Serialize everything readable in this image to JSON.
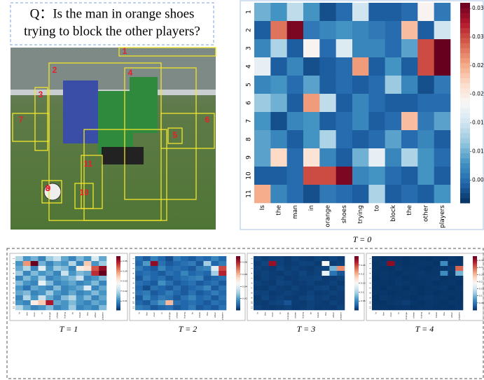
{
  "question": {
    "lines": [
      "Q：Is the man in orange shoes",
      "trying to block the other players?"
    ]
  },
  "image": {
    "box_labels": [
      "1",
      "2",
      "3",
      "4",
      "5",
      "6",
      "7",
      "8",
      "9",
      "10",
      "11"
    ]
  },
  "chart_data": [
    {
      "type": "heatmap",
      "caption": "T = 0",
      "cmap": "RdBu_r",
      "categories": [
        "Is",
        "the",
        "man",
        "in",
        "orange",
        "shoes",
        "trying",
        "to",
        "block",
        "the",
        "other",
        "players"
      ],
      "y_categories": [
        "1",
        "2",
        "3",
        "4",
        "5",
        "6",
        "7",
        "8",
        "9",
        "10",
        "11"
      ],
      "clim": [
        0.001,
        0.036
      ],
      "cticks": [
        0.005,
        {
          "value": 0.01,
          "label": "0.010"
        },
        0.015,
        {
          "value": 0.02,
          "label": "0.020"
        },
        0.025,
        {
          "value": 0.03,
          "label": "0.030"
        },
        0.035
      ],
      "values": [
        [
          0.01,
          0.008,
          0.014,
          0.008,
          0.003,
          0.005,
          0.015,
          0.004,
          0.004,
          0.005,
          0.019,
          0.006
        ],
        [
          0.004,
          0.028,
          0.035,
          0.006,
          0.007,
          0.008,
          0.007,
          0.006,
          0.005,
          0.024,
          0.004,
          0.015
        ],
        [
          0.007,
          0.013,
          0.004,
          0.019,
          0.005,
          0.016,
          0.007,
          0.007,
          0.005,
          0.009,
          0.03,
          0.036
        ],
        [
          0.017,
          0.004,
          0.007,
          0.003,
          0.004,
          0.005,
          0.026,
          0.004,
          0.008,
          0.004,
          0.03,
          0.036
        ],
        [
          0.007,
          0.008,
          0.005,
          0.009,
          0.004,
          0.005,
          0.004,
          0.005,
          0.012,
          0.007,
          0.003,
          0.006
        ],
        [
          0.012,
          0.01,
          0.004,
          0.026,
          0.014,
          0.004,
          0.007,
          0.005,
          0.004,
          0.004,
          0.005,
          0.005
        ],
        [
          0.008,
          0.003,
          0.007,
          0.008,
          0.004,
          0.005,
          0.007,
          0.004,
          0.005,
          0.024,
          0.006,
          0.009
        ],
        [
          0.009,
          0.007,
          0.004,
          0.008,
          0.013,
          0.005,
          0.004,
          0.005,
          0.009,
          0.005,
          0.007,
          0.004
        ],
        [
          0.009,
          0.022,
          0.005,
          0.021,
          0.007,
          0.004,
          0.01,
          0.017,
          0.007,
          0.013,
          0.008,
          0.005
        ],
        [
          0.004,
          0.004,
          0.005,
          0.03,
          0.03,
          0.035,
          0.007,
          0.008,
          0.005,
          0.004,
          0.008,
          0.004
        ],
        [
          0.025,
          0.007,
          0.005,
          0.003,
          0.006,
          0.005,
          0.004,
          0.013,
          0.004,
          0.005,
          0.004,
          0.008
        ]
      ]
    },
    {
      "type": "heatmap",
      "caption": "T = 1",
      "cmap": "RdBu_r",
      "categories": [
        "Is",
        "the",
        "man",
        "in",
        "orange",
        "shoes",
        "trying",
        "to",
        "block",
        "the",
        "other",
        "players"
      ],
      "y_categories": [
        "1",
        "2",
        "3",
        "4",
        "5",
        "6",
        "7",
        "8",
        "9",
        "10",
        "11"
      ],
      "clim": [
        0.001,
        0.055
      ],
      "cticks": [
        0.01,
        0.02,
        0.03,
        0.04,
        0.05
      ],
      "values": [
        [
          0.02,
          0.012,
          0.015,
          0.01,
          0.018,
          0.022,
          0.014,
          0.01,
          0.016,
          0.012,
          0.024,
          0.014
        ],
        [
          0.012,
          0.04,
          0.055,
          0.015,
          0.01,
          0.014,
          0.012,
          0.02,
          0.01,
          0.035,
          0.012,
          0.018
        ],
        [
          0.014,
          0.02,
          0.01,
          0.025,
          0.012,
          0.018,
          0.016,
          0.01,
          0.03,
          0.032,
          0.045,
          0.052
        ],
        [
          0.018,
          0.01,
          0.016,
          0.012,
          0.014,
          0.01,
          0.022,
          0.012,
          0.016,
          0.014,
          0.048,
          0.055
        ],
        [
          0.01,
          0.016,
          0.012,
          0.018,
          0.01,
          0.012,
          0.014,
          0.016,
          0.022,
          0.01,
          0.012,
          0.016
        ],
        [
          0.016,
          0.012,
          0.01,
          0.026,
          0.016,
          0.01,
          0.012,
          0.014,
          0.01,
          0.012,
          0.016,
          0.01
        ],
        [
          0.012,
          0.008,
          0.014,
          0.012,
          0.01,
          0.016,
          0.01,
          0.012,
          0.014,
          0.024,
          0.01,
          0.014
        ],
        [
          0.014,
          0.016,
          0.01,
          0.012,
          0.018,
          0.012,
          0.01,
          0.014,
          0.01,
          0.012,
          0.016,
          0.012
        ],
        [
          0.01,
          0.02,
          0.012,
          0.022,
          0.014,
          0.01,
          0.016,
          0.02,
          0.012,
          0.016,
          0.01,
          0.014
        ],
        [
          0.012,
          0.01,
          0.03,
          0.035,
          0.05,
          0.014,
          0.012,
          0.016,
          0.012,
          0.01,
          0.014,
          0.012
        ],
        [
          0.02,
          0.014,
          0.01,
          0.012,
          0.016,
          0.01,
          0.012,
          0.018,
          0.01,
          0.012,
          0.01,
          0.016
        ]
      ]
    },
    {
      "type": "heatmap",
      "caption": "T = 2",
      "cmap": "RdBu_r",
      "categories": [
        "Is",
        "the",
        "man",
        "in",
        "orange",
        "shoes",
        "trying",
        "to",
        "block",
        "the",
        "other",
        "players"
      ],
      "y_categories": [
        "1",
        "2",
        "3",
        "4",
        "5",
        "6",
        "7",
        "8",
        "9",
        "10",
        "11"
      ],
      "clim": [
        0.001,
        0.09
      ],
      "cticks": [
        0.02,
        0.04,
        0.06,
        0.08
      ],
      "values": [
        [
          0.012,
          0.008,
          0.015,
          0.01,
          0.006,
          0.014,
          0.01,
          0.008,
          0.012,
          0.01,
          0.016,
          0.01
        ],
        [
          0.01,
          0.02,
          0.085,
          0.012,
          0.008,
          0.01,
          0.012,
          0.014,
          0.008,
          0.03,
          0.01,
          0.014
        ],
        [
          0.014,
          0.01,
          0.008,
          0.016,
          0.01,
          0.012,
          0.01,
          0.008,
          0.014,
          0.016,
          0.04,
          0.075
        ],
        [
          0.01,
          0.012,
          0.01,
          0.008,
          0.012,
          0.01,
          0.016,
          0.01,
          0.012,
          0.01,
          0.03,
          0.08
        ],
        [
          0.008,
          0.014,
          0.01,
          0.012,
          0.008,
          0.01,
          0.012,
          0.014,
          0.016,
          0.008,
          0.01,
          0.012
        ],
        [
          0.012,
          0.01,
          0.008,
          0.018,
          0.012,
          0.008,
          0.01,
          0.012,
          0.008,
          0.01,
          0.012,
          0.008
        ],
        [
          0.01,
          0.006,
          0.012,
          0.01,
          0.008,
          0.012,
          0.008,
          0.01,
          0.012,
          0.016,
          0.008,
          0.012
        ],
        [
          0.012,
          0.014,
          0.008,
          0.01,
          0.014,
          0.01,
          0.008,
          0.012,
          0.008,
          0.01,
          0.014,
          0.01
        ],
        [
          0.008,
          0.016,
          0.01,
          0.014,
          0.012,
          0.008,
          0.012,
          0.016,
          0.01,
          0.012,
          0.008,
          0.012
        ],
        [
          0.01,
          0.008,
          0.014,
          0.02,
          0.06,
          0.012,
          0.01,
          0.012,
          0.01,
          0.008,
          0.012,
          0.01
        ],
        [
          0.014,
          0.012,
          0.008,
          0.01,
          0.012,
          0.008,
          0.01,
          0.014,
          0.008,
          0.01,
          0.008,
          0.012
        ]
      ]
    },
    {
      "type": "heatmap",
      "caption": "T = 3",
      "cmap": "RdBu_r",
      "categories": [
        "Is",
        "the",
        "man",
        "in",
        "orange",
        "shoes",
        "trying",
        "to",
        "block",
        "the",
        "other",
        "players"
      ],
      "y_categories": [
        "1",
        "2",
        "3",
        "4",
        "5",
        "6",
        "7",
        "8",
        "9",
        "10",
        "11"
      ],
      "clim": [
        0,
        0.3
      ],
      "cticks": [
        0.05,
        0.1,
        0.15,
        0.2,
        0.25
      ],
      "values": [
        [
          0.012,
          0.008,
          0.01,
          0.01,
          0.006,
          0.01,
          0.008,
          0.006,
          0.01,
          0.008,
          0.012,
          0.008
        ],
        [
          0.008,
          0.012,
          0.28,
          0.01,
          0.006,
          0.008,
          0.01,
          0.01,
          0.006,
          0.15,
          0.008,
          0.01
        ],
        [
          0.01,
          0.008,
          0.006,
          0.012,
          0.008,
          0.01,
          0.008,
          0.006,
          0.01,
          0.012,
          0.08,
          0.22
        ],
        [
          0.008,
          0.01,
          0.008,
          0.006,
          0.01,
          0.008,
          0.012,
          0.008,
          0.01,
          0.14,
          0.04,
          0.02
        ],
        [
          0.006,
          0.01,
          0.008,
          0.01,
          0.006,
          0.008,
          0.01,
          0.01,
          0.012,
          0.006,
          0.008,
          0.01
        ],
        [
          0.01,
          0.008,
          0.006,
          0.012,
          0.01,
          0.006,
          0.008,
          0.01,
          0.006,
          0.008,
          0.01,
          0.006
        ],
        [
          0.008,
          0.006,
          0.01,
          0.008,
          0.006,
          0.01,
          0.006,
          0.008,
          0.01,
          0.012,
          0.006,
          0.01
        ],
        [
          0.01,
          0.01,
          0.006,
          0.008,
          0.01,
          0.008,
          0.006,
          0.01,
          0.006,
          0.008,
          0.01,
          0.008
        ],
        [
          0.006,
          0.012,
          0.008,
          0.01,
          0.008,
          0.006,
          0.01,
          0.012,
          0.008,
          0.01,
          0.006,
          0.008
        ],
        [
          0.008,
          0.006,
          0.01,
          0.012,
          0.02,
          0.008,
          0.006,
          0.01,
          0.008,
          0.006,
          0.01,
          0.008
        ],
        [
          0.01,
          0.008,
          0.006,
          0.008,
          0.01,
          0.006,
          0.008,
          0.01,
          0.006,
          0.008,
          0.006,
          0.01
        ]
      ]
    },
    {
      "type": "heatmap",
      "caption": "T = 4",
      "cmap": "RdBu_r",
      "categories": [
        "Is",
        "the",
        "man",
        "in",
        "orange",
        "shoes",
        "trying",
        "to",
        "block",
        "the",
        "other",
        "players"
      ],
      "y_categories": [
        "1",
        "2",
        "3",
        "4",
        "5",
        "6",
        "7",
        "8",
        "9",
        "10",
        "11"
      ],
      "clim": [
        0,
        0.38
      ],
      "cticks": [
        0.05,
        0.1,
        0.15,
        0.2,
        0.25,
        0.3,
        0.35
      ],
      "values": [
        [
          0.006,
          0.004,
          0.005,
          0.005,
          0.003,
          0.005,
          0.004,
          0.003,
          0.005,
          0.004,
          0.006,
          0.004
        ],
        [
          0.004,
          0.006,
          0.36,
          0.005,
          0.003,
          0.004,
          0.005,
          0.005,
          0.003,
          0.07,
          0.004,
          0.005
        ],
        [
          0.005,
          0.004,
          0.003,
          0.006,
          0.004,
          0.005,
          0.004,
          0.003,
          0.005,
          0.006,
          0.01,
          0.3
        ],
        [
          0.004,
          0.005,
          0.004,
          0.003,
          0.005,
          0.004,
          0.006,
          0.004,
          0.005,
          0.07,
          0.006,
          0.1
        ],
        [
          0.003,
          0.005,
          0.004,
          0.005,
          0.003,
          0.004,
          0.005,
          0.005,
          0.006,
          0.003,
          0.004,
          0.005
        ],
        [
          0.005,
          0.004,
          0.003,
          0.006,
          0.005,
          0.003,
          0.004,
          0.005,
          0.003,
          0.004,
          0.005,
          0.003
        ],
        [
          0.004,
          0.003,
          0.005,
          0.004,
          0.003,
          0.005,
          0.003,
          0.004,
          0.005,
          0.006,
          0.003,
          0.005
        ],
        [
          0.005,
          0.005,
          0.003,
          0.004,
          0.005,
          0.004,
          0.003,
          0.005,
          0.003,
          0.004,
          0.005,
          0.004
        ],
        [
          0.003,
          0.006,
          0.004,
          0.005,
          0.004,
          0.003,
          0.005,
          0.006,
          0.004,
          0.005,
          0.003,
          0.004
        ],
        [
          0.004,
          0.003,
          0.005,
          0.006,
          0.01,
          0.004,
          0.003,
          0.005,
          0.004,
          0.003,
          0.005,
          0.004
        ],
        [
          0.005,
          0.004,
          0.003,
          0.004,
          0.005,
          0.003,
          0.004,
          0.005,
          0.003,
          0.004,
          0.003,
          0.005
        ]
      ]
    }
  ]
}
